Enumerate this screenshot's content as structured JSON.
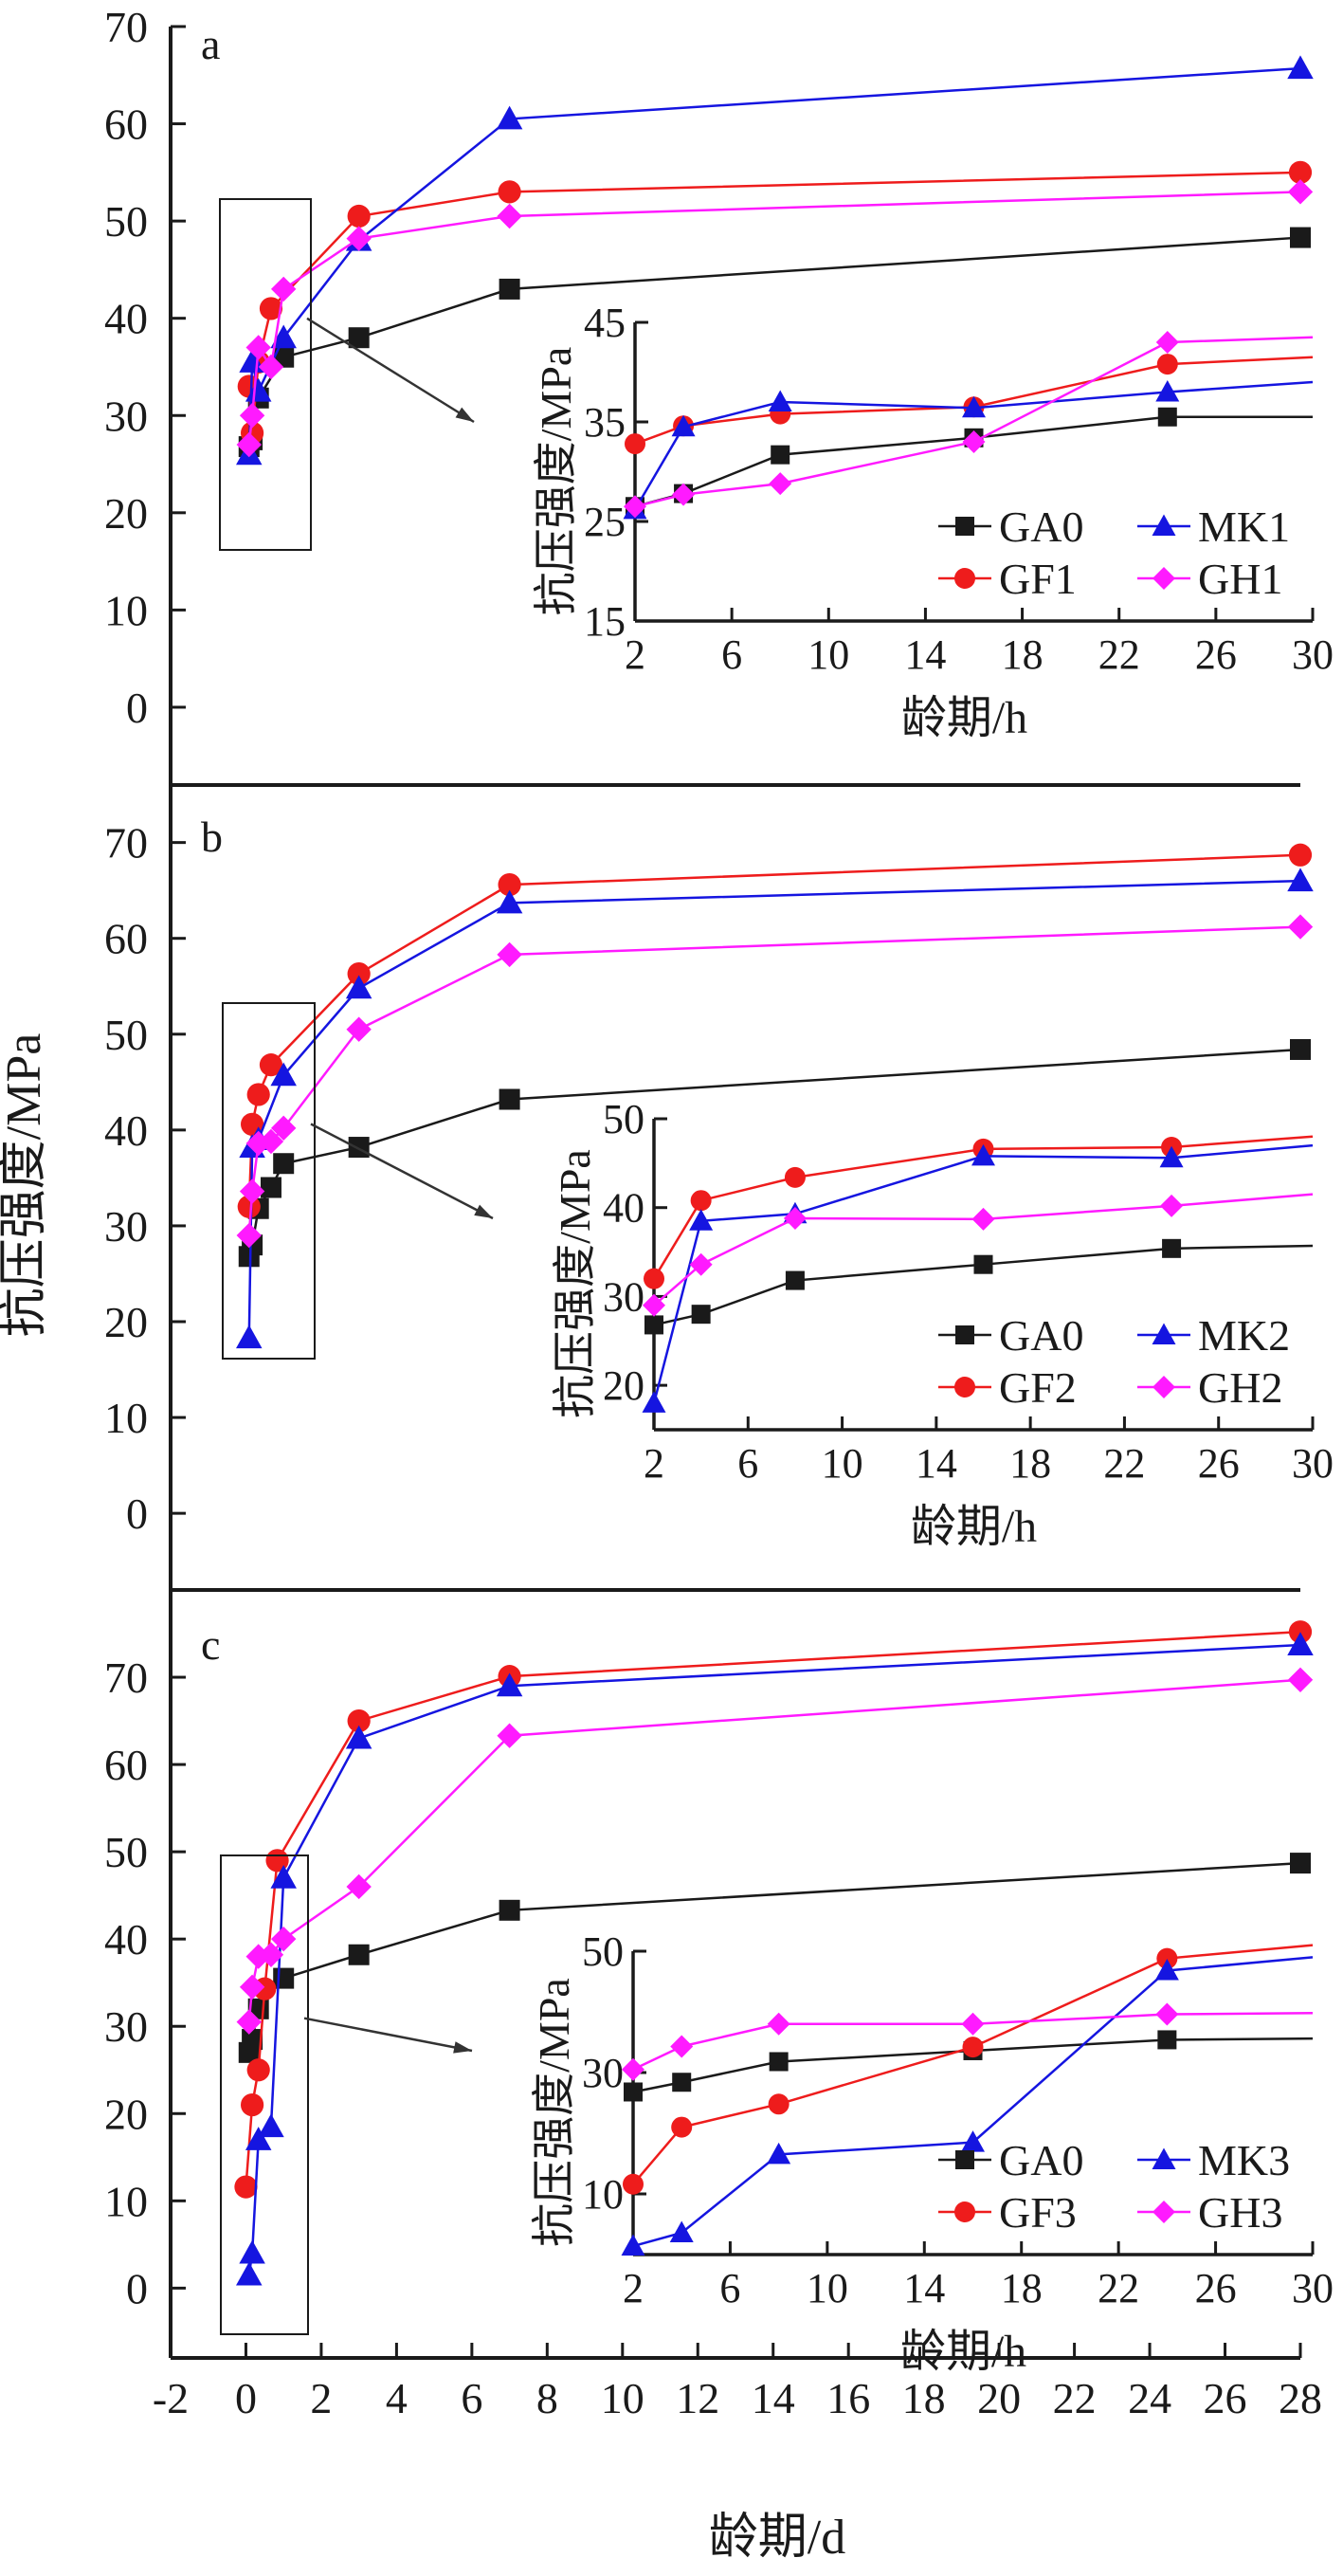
{
  "figure": {
    "ylabel": "抗压强度/MPa",
    "xlabel": "龄期/d",
    "x_ticks": [
      "-2",
      "0",
      "2",
      "4",
      "6",
      "8",
      "10",
      "12",
      "14",
      "16",
      "18",
      "20",
      "22",
      "24",
      "26",
      "28"
    ]
  },
  "chart_data": [
    {
      "panel": "a",
      "type": "line",
      "xlabel": "龄期/d",
      "ylabel": "抗压强度/MPa",
      "xlim": [
        -2,
        28
      ],
      "ylim": [
        -8,
        70
      ],
      "y_ticks": [
        "0",
        "10",
        "20",
        "30",
        "40",
        "50",
        "60",
        "70"
      ],
      "series": [
        {
          "name": "GA0",
          "color": "#1a1a1a",
          "marker": "square",
          "x": [
            0.083,
            0.167,
            0.333,
            1,
            3,
            7,
            28
          ],
          "y": [
            26.8,
            27.5,
            31.8,
            36,
            38,
            43,
            48.3
          ]
        },
        {
          "name": "GF1",
          "color": "#ee1c1c",
          "marker": "circle",
          "x": [
            0.083,
            0.167,
            0.333,
            0.667,
            3,
            7,
            28
          ],
          "y": [
            33,
            28.2,
            35.5,
            41,
            50.5,
            53,
            55
          ]
        },
        {
          "name": "MK1",
          "color": "#1515e0",
          "marker": "triangle",
          "x": [
            0.083,
            0.167,
            0.333,
            1,
            3,
            7,
            28
          ],
          "y": [
            26,
            35.5,
            32.5,
            38,
            48,
            60.5,
            65.7
          ]
        },
        {
          "name": "GH1",
          "color": "#ff1aff",
          "marker": "diamond",
          "x": [
            0.083,
            0.167,
            0.333,
            0.667,
            1,
            3,
            7,
            28
          ],
          "y": [
            27,
            30,
            37,
            35,
            43,
            48.2,
            50.5,
            53
          ]
        }
      ],
      "inset": {
        "xlabel": "龄期/h",
        "ylabel": "抗压强度/MPa",
        "xlim": [
          2,
          30
        ],
        "ylim": [
          15,
          45
        ],
        "x_ticks": [
          "2",
          "6",
          "10",
          "14",
          "18",
          "22",
          "26",
          "30"
        ],
        "y_ticks": [
          "15",
          "25",
          "35",
          "45"
        ],
        "legend_position": "bottom-right",
        "series": [
          {
            "name": "GA0",
            "x": [
              2,
              4,
              8,
              16,
              24,
              30
            ],
            "y": [
              26.5,
              27.8,
              31.7,
              33.4,
              35.5,
              35.5
            ]
          },
          {
            "name": "GF1",
            "x": [
              2,
              4,
              8,
              16,
              24,
              30
            ],
            "y": [
              32.8,
              34.6,
              35.8,
              36.5,
              40.8,
              41.5
            ]
          },
          {
            "name": "MK1",
            "x": [
              2,
              4,
              8,
              16,
              24,
              30
            ],
            "y": [
              26.2,
              34.5,
              37,
              36.4,
              38,
              39
            ]
          },
          {
            "name": "GH1",
            "x": [
              2,
              4,
              8,
              16,
              24,
              30
            ],
            "y": [
              26.5,
              27.7,
              28.8,
              33,
              43,
              43.5
            ]
          }
        ]
      }
    },
    {
      "panel": "b",
      "type": "line",
      "xlabel": "龄期/d",
      "ylabel": "抗压强度/MPa",
      "xlim": [
        -2,
        28
      ],
      "ylim": [
        -8,
        76
      ],
      "y_ticks": [
        "0",
        "10",
        "20",
        "30",
        "40",
        "50",
        "60",
        "70"
      ],
      "series": [
        {
          "name": "GA0",
          "color": "#1a1a1a",
          "marker": "square",
          "x": [
            0.083,
            0.167,
            0.333,
            0.667,
            1,
            3,
            7,
            28
          ],
          "y": [
            26.8,
            28,
            31.8,
            34,
            36.5,
            38.2,
            43.2,
            48.4
          ]
        },
        {
          "name": "GF2",
          "color": "#ee1c1c",
          "marker": "circle",
          "x": [
            0.083,
            0.167,
            0.333,
            0.667,
            3,
            7,
            28
          ],
          "y": [
            32,
            40.6,
            43.7,
            46.8,
            56.3,
            65.6,
            68.7
          ]
        },
        {
          "name": "MK2",
          "color": "#1515e0",
          "marker": "triangle",
          "x": [
            0.083,
            0.167,
            0.333,
            1,
            3,
            7,
            28
          ],
          "y": [
            18.3,
            38.2,
            39,
            45.7,
            54.8,
            63.7,
            66
          ]
        },
        {
          "name": "GH2",
          "color": "#ff1aff",
          "marker": "diamond",
          "x": [
            0.083,
            0.167,
            0.333,
            0.667,
            1,
            3,
            7,
            28
          ],
          "y": [
            29,
            33.6,
            38.6,
            38.8,
            40.2,
            50.5,
            58.3,
            61.2
          ]
        }
      ],
      "inset": {
        "xlabel": "龄期/h",
        "ylabel": "抗压强度/MPa",
        "xlim": [
          2,
          30
        ],
        "ylim": [
          15,
          50
        ],
        "x_ticks": [
          "2",
          "6",
          "10",
          "14",
          "18",
          "22",
          "26",
          "30"
        ],
        "y_ticks": [
          "20",
          "30",
          "40",
          "50"
        ],
        "legend_position": "bottom-right",
        "series": [
          {
            "name": "GA0",
            "x": [
              2,
              4,
              8,
              16,
              24,
              30
            ],
            "y": [
              26.8,
              28,
              31.8,
              33.6,
              35.4,
              35.7
            ]
          },
          {
            "name": "GF2",
            "x": [
              2,
              4,
              8,
              16,
              24,
              30
            ],
            "y": [
              32,
              40.8,
              43.4,
              46.6,
              46.8,
              48
            ]
          },
          {
            "name": "MK2",
            "x": [
              2,
              4,
              8,
              16,
              24,
              30
            ],
            "y": [
              18,
              38.5,
              39.3,
              45.8,
              45.6,
              47
            ]
          },
          {
            "name": "GH2",
            "x": [
              2,
              4,
              8,
              16,
              24,
              30
            ],
            "y": [
              29,
              33.6,
              38.8,
              38.7,
              40.2,
              41.5
            ]
          }
        ]
      }
    },
    {
      "panel": "c",
      "type": "line",
      "xlabel": "龄期/d",
      "ylabel": "抗压强度/MPa",
      "xlim": [
        -2,
        28
      ],
      "ylim": [
        -8,
        80
      ],
      "y_ticks": [
        "0",
        "10",
        "20",
        "30",
        "40",
        "50",
        "60",
        "70"
      ],
      "series": [
        {
          "name": "GA0",
          "color": "#1a1a1a",
          "marker": "square",
          "x": [
            0.083,
            0.167,
            0.333,
            1,
            3,
            7,
            28
          ],
          "y": [
            27,
            28.5,
            32,
            35.5,
            38.2,
            43.3,
            48.7
          ]
        },
        {
          "name": "GF3",
          "color": "#ee1c1c",
          "marker": "circle",
          "x": [
            0,
            0.167,
            0.333,
            0.5,
            0.833,
            3,
            7,
            28
          ],
          "y": [
            11.6,
            21,
            25,
            34.3,
            49,
            65,
            70.1,
            75.2
          ]
        },
        {
          "name": "MK3",
          "color": "#1515e0",
          "marker": "triangle",
          "x": [
            0.083,
            0.167,
            0.333,
            0.667,
            1,
            3,
            7,
            28
          ],
          "y": [
            1.5,
            4,
            17,
            18.5,
            47,
            63,
            69,
            73.7
          ]
        },
        {
          "name": "GH3",
          "color": "#ff1aff",
          "marker": "diamond",
          "x": [
            0.083,
            0.167,
            0.333,
            0.667,
            1,
            3,
            7,
            28
          ],
          "y": [
            30.5,
            34.5,
            38,
            38.2,
            40,
            46,
            63.3,
            69.7
          ]
        }
      ],
      "inset": {
        "xlabel": "龄期/h",
        "ylabel": "抗压强度/MPa",
        "xlim": [
          2,
          30
        ],
        "ylim": [
          0,
          50
        ],
        "x_ticks": [
          "2",
          "6",
          "10",
          "14",
          "18",
          "22",
          "26",
          "30"
        ],
        "y_ticks": [
          "10",
          "30",
          "50"
        ],
        "legend_position": "bottom-right",
        "series": [
          {
            "name": "GA0",
            "x": [
              2,
              4,
              8,
              16,
              24,
              30
            ],
            "y": [
              26.8,
              28.4,
              31.8,
              33.6,
              35.4,
              35.6
            ]
          },
          {
            "name": "GF3",
            "x": [
              2,
              4,
              8,
              16,
              24,
              30
            ],
            "y": [
              11.6,
              21,
              24.8,
              34.2,
              48.8,
              51
            ]
          },
          {
            "name": "MK3",
            "x": [
              2,
              4,
              8,
              16,
              24,
              30
            ],
            "y": [
              1.4,
              3.6,
              16.5,
              18.5,
              46.8,
              49
            ]
          },
          {
            "name": "GH3",
            "x": [
              2,
              4,
              8,
              16,
              24,
              30
            ],
            "y": [
              30.5,
              34.3,
              38,
              38,
              39.6,
              39.8
            ]
          }
        ]
      }
    }
  ]
}
